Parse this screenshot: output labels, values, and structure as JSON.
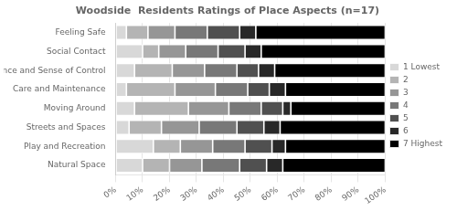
{
  "chart_data": {
    "type": "bar",
    "orientation": "horizontal",
    "stacked": true,
    "title": "Woodside  Residents Ratings of Place Aspects (n=17)",
    "categories": [
      "Feeling Safe",
      "Social Contact",
      "Influence and Sense of Control",
      "Care and Maintenance",
      "Moving Around",
      "Streets and Spaces",
      "Play and Recreation",
      "Natural Space"
    ],
    "series": [
      {
        "name": "1 Lowest",
        "color": "#d8d8d8",
        "values": [
          0.04,
          0.1,
          0.07,
          0.04,
          0.07,
          0.05,
          0.14,
          0.1
        ]
      },
      {
        "name": "2",
        "color": "#b4b4b4",
        "values": [
          0.08,
          0.06,
          0.14,
          0.18,
          0.2,
          0.12,
          0.1,
          0.1
        ]
      },
      {
        "name": "3",
        "color": "#969696",
        "values": [
          0.1,
          0.1,
          0.12,
          0.15,
          0.15,
          0.14,
          0.12,
          0.12
        ]
      },
      {
        "name": "4",
        "color": "#787878",
        "values": [
          0.12,
          0.12,
          0.12,
          0.12,
          0.12,
          0.14,
          0.12,
          0.14
        ]
      },
      {
        "name": "5",
        "color": "#505050",
        "values": [
          0.12,
          0.1,
          0.08,
          0.08,
          0.08,
          0.1,
          0.1,
          0.1
        ]
      },
      {
        "name": "6",
        "color": "#282828",
        "values": [
          0.06,
          0.06,
          0.06,
          0.06,
          0.03,
          0.06,
          0.05,
          0.06
        ]
      },
      {
        "name": "7 Highest",
        "color": "#000000",
        "values": [
          0.48,
          0.46,
          0.41,
          0.37,
          0.35,
          0.39,
          0.37,
          0.38
        ]
      }
    ],
    "xlim": [
      0,
      1
    ],
    "xticks": [
      {
        "value": 0.0,
        "label": "0%"
      },
      {
        "value": 0.1,
        "label": "10%"
      },
      {
        "value": 0.2,
        "label": "20%"
      },
      {
        "value": 0.3,
        "label": "30%"
      },
      {
        "value": 0.4,
        "label": "40%"
      },
      {
        "value": 0.5,
        "label": "50%"
      },
      {
        "value": 0.6,
        "label": "60%"
      },
      {
        "value": 0.7,
        "label": "70%"
      },
      {
        "value": 0.8,
        "label": "80%"
      },
      {
        "value": 0.9,
        "label": "90%"
      },
      {
        "value": 1.0,
        "label": "100%"
      }
    ],
    "grid": true,
    "legend": "right"
  }
}
